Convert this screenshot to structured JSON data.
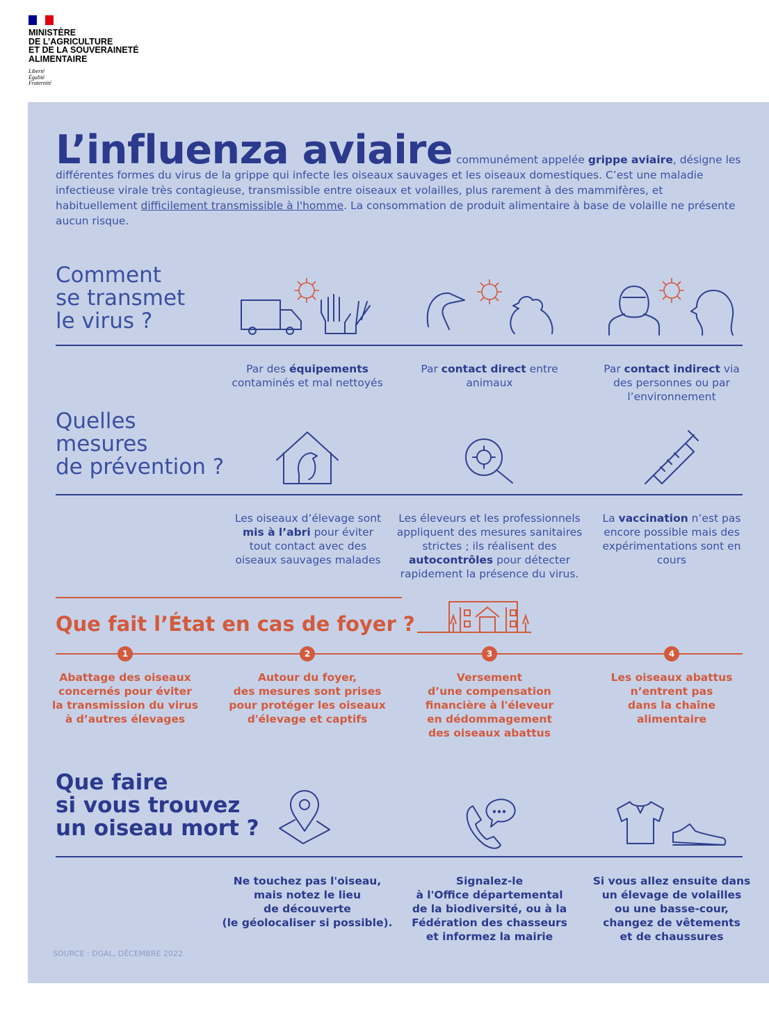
{
  "header": {
    "ministry": [
      "MINISTÈRE",
      "DE L’AGRICULTURE",
      "ET DE LA SOUVERAINETÉ",
      "ALIMENTAIRE"
    ],
    "motto": [
      "Liberté",
      "Égalité",
      "Fraternité"
    ]
  },
  "intro": {
    "title": "L’influenza aviaire",
    "text": [
      "communément appelée ",
      "grippe aviaire",
      ", désigne les différentes formes du virus de la grippe qui infecte les oiseaux sauvages et les oiseaux domestiques. C’est une maladie infectieuse virale très contagieuse, transmissible entre oiseaux et volailles, plus rarement à des mammifères, et habituellement ",
      "difficilement transmissible à l'homme",
      ". La consommation de produit alimentaire à base de volaille ne présente aucun risque."
    ]
  },
  "transmission": {
    "heading": [
      "Comment",
      "se transmet",
      "le virus ?"
    ],
    "items": [
      [
        "Par des ",
        "équipements",
        " contaminés et mal nettoyés"
      ],
      [
        "Par ",
        "contact direct",
        " entre animaux"
      ],
      [
        "Par ",
        "contact indirect",
        " via des personnes ou par l’environnement"
      ]
    ]
  },
  "prevention": {
    "heading": [
      "Quelles",
      "mesures",
      "de prévention ?"
    ],
    "items": [
      [
        "Les oiseaux d’élevage sont ",
        "mis à l’abri",
        " pour éviter tout contact avec des oiseaux sauvages malades"
      ],
      [
        "Les éleveurs et les professionnels appliquent des mesures sanitaires strictes ; ils réalisent des ",
        "autocontrôles",
        " pour détecter rapidement la présence du virus."
      ],
      [
        "La ",
        "vaccination",
        " n’est pas encore possible mais des expérimentations sont en cours"
      ]
    ]
  },
  "state": {
    "heading": "Que fait l’État en cas de foyer ?",
    "steps": [
      {
        "number": "1",
        "text": [
          "Abattage des oiseaux",
          "concernés pour éviter",
          "la transmission du virus",
          "à d’autres élevages"
        ]
      },
      {
        "number": "2",
        "text": [
          "Autour du foyer,",
          "des mesures sont prises",
          "pour protéger les oiseaux",
          "d'élevage et captifs"
        ]
      },
      {
        "number": "3",
        "text": [
          "Versement",
          "d’une compensation",
          "financière à l'éleveur",
          "en dédommagement",
          "des oiseaux abattus"
        ]
      },
      {
        "number": "4",
        "text": [
          "Les oiseaux abattus",
          "n’entrent pas",
          "dans la chaîne",
          "alimentaire"
        ]
      }
    ]
  },
  "dead_bird": {
    "heading": [
      "Que faire",
      "si vous trouvez",
      "un oiseau mort ?"
    ],
    "items": [
      [
        "Ne touchez pas l'oiseau,",
        "mais notez le lieu",
        "de découverte",
        "(le géolocaliser si possible)."
      ],
      [
        "Signalez-le",
        "à l'Office départemental",
        "de la biodiversité, ou à la",
        "Fédération des chasseurs",
        "et informez la mairie"
      ],
      [
        "Si vous allez ensuite dans",
        "un élevage de volailles",
        "ou une basse-cour,",
        "changez de vêtements",
        "et de chaussures"
      ]
    ]
  },
  "source": "SOURCE : DGAL, DÉCEMBRE 2022."
}
